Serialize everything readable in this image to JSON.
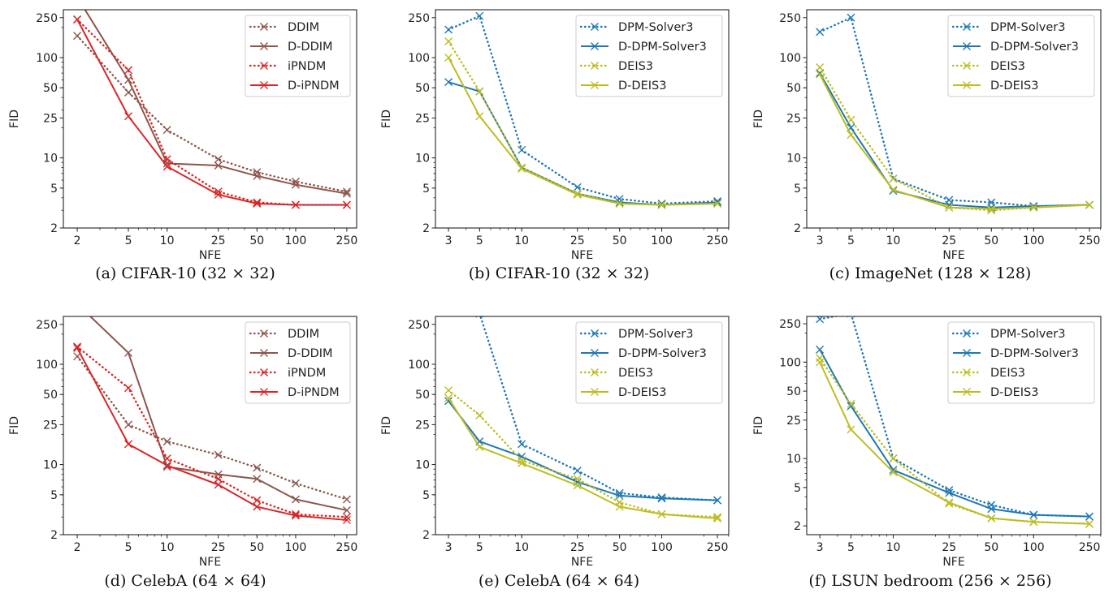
{
  "colors": {
    "DDIM": "#8c564b",
    "D-DDIM": "#8c564b",
    "iPNDM": "#d62728",
    "D-iPNDM": "#d62728",
    "DPM-Solver3": "#1f77b4",
    "D-DPM-Solver3": "#1f77b4",
    "DEIS3": "#bcbd22",
    "D-DEIS3": "#bcbd22"
  },
  "chart_data": [
    {
      "type": "line",
      "caption": "(a) CIFAR-10 (32 × 32)",
      "xlabel": "NFE",
      "ylabel": "FID",
      "xscale": "log",
      "yscale": "log",
      "x": [
        2,
        5,
        10,
        25,
        50,
        100,
        250
      ],
      "xticks": [
        "2",
        "5",
        "10",
        "25",
        "50",
        "100",
        "250"
      ],
      "yticks": [
        "2",
        "5",
        "10",
        "25",
        "50",
        "100",
        "250"
      ],
      "xlim": [
        1.56,
        298
      ],
      "ylim": [
        2,
        300
      ],
      "legend": "top-right",
      "grid": false,
      "series": [
        {
          "name": "DDIM",
          "style": "dotted",
          "values": [
            165,
            45,
            19,
            9.7,
            7.2,
            5.8,
            4.6
          ]
        },
        {
          "name": "D-DDIM",
          "style": "solid",
          "values": [
            400,
            60,
            8.8,
            8.4,
            6.6,
            5.4,
            4.4
          ]
        },
        {
          "name": "iPNDM",
          "style": "dotted",
          "values": [
            240,
            75,
            9.7,
            4.6,
            3.6,
            3.4,
            3.4
          ]
        },
        {
          "name": "D-iPNDM",
          "style": "solid",
          "values": [
            240,
            26,
            8.2,
            4.3,
            3.5,
            3.4,
            3.4
          ]
        }
      ]
    },
    {
      "type": "line",
      "caption": "(b) CIFAR-10 (32 × 32)",
      "xlabel": "NFE",
      "ylabel": "FID",
      "xscale": "log",
      "yscale": "log",
      "x": [
        3,
        5,
        10,
        25,
        50,
        100,
        250
      ],
      "xticks": [
        "3",
        "5",
        "10",
        "25",
        "50",
        "100",
        "250"
      ],
      "yticks": [
        "2",
        "5",
        "10",
        "25",
        "50",
        "100",
        "250"
      ],
      "xlim": [
        2.42,
        301
      ],
      "ylim": [
        2,
        300
      ],
      "legend": "top-right",
      "grid": false,
      "series": [
        {
          "name": "DPM-Solver3",
          "style": "dotted",
          "values": [
            190,
            260,
            12,
            5.1,
            3.9,
            3.5,
            3.7
          ]
        },
        {
          "name": "D-DPM-Solver3",
          "style": "solid",
          "values": [
            57,
            46,
            8,
            4.4,
            3.6,
            3.4,
            3.6
          ]
        },
        {
          "name": "DEIS3",
          "style": "dotted",
          "values": [
            145,
            46,
            8,
            4.4,
            3.5,
            3.4,
            3.5
          ]
        },
        {
          "name": "D-DEIS3",
          "style": "solid",
          "values": [
            100,
            26,
            7.8,
            4.3,
            3.5,
            3.4,
            3.5
          ]
        }
      ]
    },
    {
      "type": "line",
      "caption": "(c) ImageNet (128 × 128)",
      "xlabel": "NFE",
      "ylabel": "FID",
      "xscale": "log",
      "yscale": "log",
      "x": [
        3,
        5,
        10,
        25,
        50,
        100,
        250
      ],
      "xticks": [
        "3",
        "5",
        "10",
        "25",
        "50",
        "100",
        "250"
      ],
      "yticks": [
        "2",
        "5",
        "10",
        "25",
        "50",
        "100",
        "250"
      ],
      "xlim": [
        2.42,
        301
      ],
      "ylim": [
        2,
        300
      ],
      "legend": "top-right",
      "grid": false,
      "series": [
        {
          "name": "DPM-Solver3",
          "style": "dotted",
          "values": [
            180,
            250,
            6.2,
            3.8,
            3.6,
            3.3,
            3.4
          ]
        },
        {
          "name": "D-DPM-Solver3",
          "style": "solid",
          "values": [
            70,
            20,
            4.7,
            3.4,
            3.2,
            3.3,
            3.4
          ]
        },
        {
          "name": "DEIS3",
          "style": "dotted",
          "values": [
            80,
            24,
            6.2,
            3.2,
            3.0,
            3.2,
            3.4
          ]
        },
        {
          "name": "D-DEIS3",
          "style": "solid",
          "values": [
            68,
            17,
            4.8,
            3.2,
            3.1,
            3.2,
            3.4
          ]
        }
      ]
    },
    {
      "type": "line",
      "caption": "(d) CelebA (64 × 64)",
      "xlabel": "NFE",
      "ylabel": "FID",
      "xscale": "log",
      "yscale": "log",
      "x": [
        2,
        5,
        10,
        25,
        50,
        100,
        250
      ],
      "xticks": [
        "2",
        "5",
        "10",
        "25",
        "50",
        "100",
        "250"
      ],
      "yticks": [
        "2",
        "5",
        "10",
        "25",
        "50",
        "100",
        "250"
      ],
      "xlim": [
        1.56,
        298
      ],
      "ylim": [
        2,
        300
      ],
      "legend": "top-right",
      "grid": false,
      "series": [
        {
          "name": "DDIM",
          "style": "dotted",
          "values": [
            120,
            25,
            17,
            12.5,
            9.3,
            6.5,
            4.5
          ]
        },
        {
          "name": "D-DDIM",
          "style": "solid",
          "values": [
            400,
            130,
            9.5,
            8,
            7.2,
            4.5,
            3.5
          ]
        },
        {
          "name": "iPNDM",
          "style": "dotted",
          "values": [
            150,
            58,
            11.5,
            7.2,
            4.4,
            3.2,
            3.0
          ]
        },
        {
          "name": "D-iPNDM",
          "style": "solid",
          "values": [
            145,
            16,
            9.8,
            6.3,
            3.8,
            3.1,
            2.8
          ]
        }
      ]
    },
    {
      "type": "line",
      "caption": "(e) CelebA (64 × 64)",
      "xlabel": "NFE",
      "ylabel": "FID",
      "xscale": "log",
      "yscale": "log",
      "x": [
        3,
        5,
        10,
        25,
        50,
        100,
        250
      ],
      "xticks": [
        "3",
        "5",
        "10",
        "25",
        "50",
        "100",
        "250"
      ],
      "yticks": [
        "2",
        "5",
        "10",
        "25",
        "50",
        "100",
        "250"
      ],
      "xlim": [
        2.42,
        301
      ],
      "ylim": [
        2,
        300
      ],
      "legend": "top-right",
      "grid": false,
      "series": [
        {
          "name": "DPM-Solver3",
          "style": "dotted",
          "values": [
            null,
            320,
            16,
            8.7,
            5.2,
            4.7,
            4.4
          ]
        },
        {
          "name": "D-DPM-Solver3",
          "style": "solid",
          "values": [
            43,
            17,
            12,
            6.7,
            4.9,
            4.6,
            4.4
          ]
        },
        {
          "name": "DEIS3",
          "style": "dotted",
          "values": [
            55,
            31,
            11,
            7.2,
            4.2,
            3.2,
            3.0
          ]
        },
        {
          "name": "D-DEIS3",
          "style": "solid",
          "values": [
            46,
            15,
            10.3,
            6.2,
            3.8,
            3.2,
            2.9
          ]
        }
      ]
    },
    {
      "type": "line",
      "caption": "(f) LSUN bedroom (256 × 256)",
      "xlabel": "NFE",
      "ylabel": "FID",
      "xscale": "log",
      "yscale": "log",
      "x": [
        3,
        5,
        10,
        25,
        50,
        100,
        250
      ],
      "xticks": [
        "3",
        "5",
        "10",
        "25",
        "50",
        "100",
        "250"
      ],
      "yticks": [
        "2",
        "5",
        "10",
        "25",
        "50",
        "100",
        "250"
      ],
      "xlim": [
        2.42,
        301
      ],
      "ylim": [
        1.62,
        298
      ],
      "legend": "top-right",
      "grid": false,
      "series": [
        {
          "name": "DPM-Solver3",
          "style": "dotted",
          "values": [
            280,
            320,
            10,
            4.7,
            3.3,
            2.6,
            2.5
          ]
        },
        {
          "name": "D-DPM-Solver3",
          "style": "solid",
          "values": [
            135,
            35,
            7.6,
            4.4,
            3.0,
            2.6,
            2.5
          ]
        },
        {
          "name": "DEIS3",
          "style": "dotted",
          "values": [
            110,
            37,
            10,
            3.4,
            2.4,
            2.2,
            2.1
          ]
        },
        {
          "name": "D-DEIS3",
          "style": "solid",
          "values": [
            100,
            20,
            7.2,
            3.5,
            2.4,
            2.2,
            2.1
          ]
        }
      ]
    }
  ]
}
